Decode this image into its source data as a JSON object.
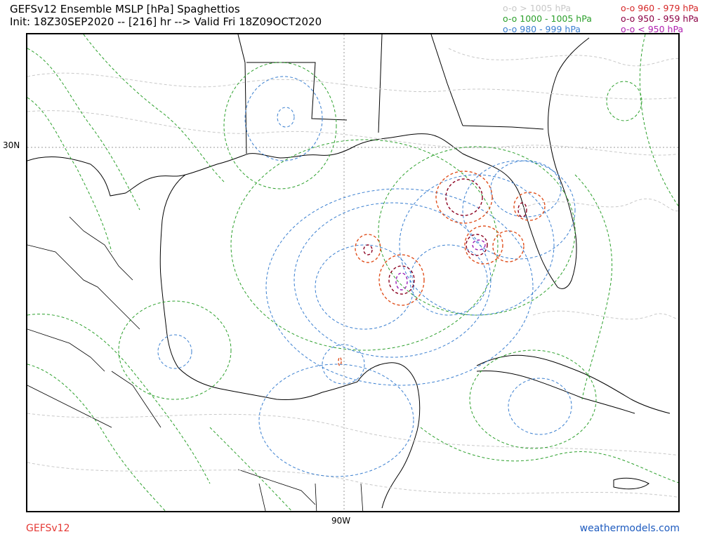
{
  "title": {
    "line1": "GEFSv12 Ensemble MSLP [hPa] Spaghettios",
    "line2": "Init: 18Z30SEP2020 -- [216] hr --> Valid Fri 18Z09OCT2020"
  },
  "legend": [
    {
      "label": "o-o > 1005 hPa",
      "color": "#c8c8c8"
    },
    {
      "label": "o-o 1000 - 1005 hPa",
      "color": "#2ca02c"
    },
    {
      "label": "o-o 980 - 999 hPa",
      "color": "#3a7fd0"
    },
    {
      "label": "o-o 960 - 979 hPa",
      "color": "#d62728"
    },
    {
      "label": "o-o 950 - 959 hPa",
      "color": "#8b0045"
    },
    {
      "label": "o-o < 950 hPa",
      "color": "#b020b0"
    }
  ],
  "axes": {
    "lat_label": "30N",
    "lon_label": "90W"
  },
  "footer": {
    "model": "GEFSv12",
    "site": "weathermodels.com"
  },
  "colors": {
    "gt1005": "#c8c8c8",
    "c1000_1005": "#2ca02c",
    "c980_999": "#3a7fd0",
    "c960_979": "#e0501e",
    "c950_959": "#8b0020",
    "lt950": "#9b1fb5",
    "land": "#000000",
    "grid": "#999999"
  }
}
